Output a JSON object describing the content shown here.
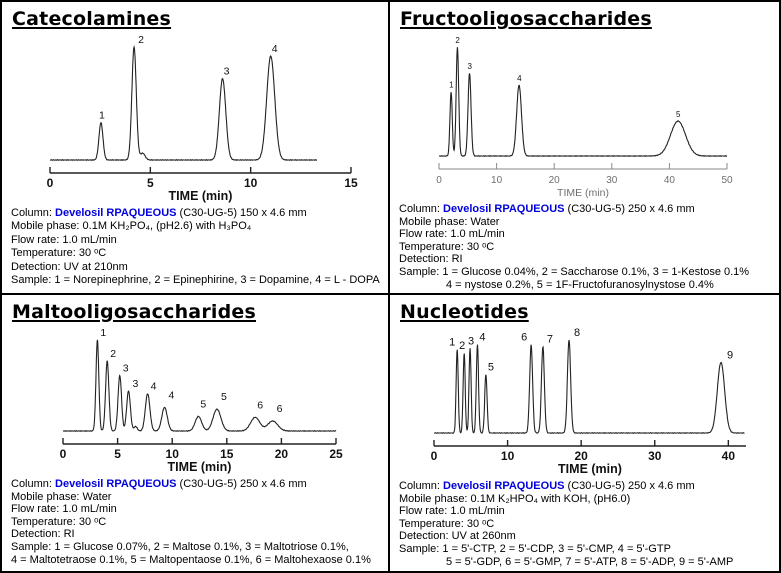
{
  "colors": {
    "accent_blue": "#0000dd",
    "trace": "#222222",
    "axis_dark": "#111111",
    "axis_light": "#6f6f6f"
  },
  "panels": [
    {
      "title": "Catecolamines",
      "details": {
        "column_label": "Column: ",
        "column_name": "Develosil RPAQUEOUS",
        "column_rest": " (C30-UG-5) 150 x 4.6 mm",
        "mobile_phase": "Mobile phase: 0.1M KH₂PO₄, (pH2.6) with H₃PO₄",
        "flow_rate": "Flow rate: 1.0 mL/min",
        "temperature": "Temperature: 30 ᵒC",
        "detection": "Detection: UV at 210nm",
        "sample_line1": "Sample: 1 = Norepinephrine, 2 = Epinephirine, 3 = Dopamine, 4 = L - DOPA",
        "sample_line2": ""
      }
    },
    {
      "title": "Fructooligosaccharides",
      "details": {
        "column_label": "Column: ",
        "column_name": "Develosil RPAQUEOUS",
        "column_rest": " (C30-UG-5) 250 x 4.6 mm",
        "mobile_phase": "Mobile phase: Water",
        "flow_rate": "Flow rate: 1.0 mL/min",
        "temperature": "Temperature: 30 ᵒC",
        "detection": "Detection: RI",
        "sample_line1": "Sample: 1 = Glucose 0.04%, 2 = Saccharose 0.1%, 3 = 1-Kestose 0.1%",
        "sample_line2": "4 =  nystose 0.2%, 5 = 1F-Fructofuranosylnystose 0.4%"
      }
    },
    {
      "title": "Maltooligosaccharides",
      "details": {
        "column_label": "Column: ",
        "column_name": "Develosil RPAQUEOUS",
        "column_rest": " (C30-UG-5) 250 x 4.6 mm",
        "mobile_phase": "Mobile phase: Water",
        "flow_rate": "Flow rate: 1.0 mL/min",
        "temperature": "Temperature: 30 ᵒC",
        "detection": "Detection: RI",
        "sample_line1": "Sample: 1 = Glucose 0.07%, 2 = Maltose 0.1%, 3 = Maltotriose 0.1%,",
        "sample_line2": "4 = Maltotetraose 0.1%, 5 = Maltopentaose 0.1%, 6 = Maltohexaose 0.1%"
      }
    },
    {
      "title": "Nucleotides",
      "details": {
        "column_label": "Column: ",
        "column_name": "Develosil RPAQUEOUS",
        "column_rest": " (C30-UG-5) 250 x 4.6 mm",
        "mobile_phase": "Mobile phase: 0.1M K₂HPO₄ with KOH, (pH6.0)",
        "flow_rate": "Flow rate: 1.0 mL/min",
        "temperature": "Temperature: 30 ᵒC",
        "detection": "Detection: UV at 260nm",
        "sample_line1": "Sample: 1 = 5'-CTP, 2 = 5'-CDP, 3 = 5'-CMP, 4 = 5'-GTP",
        "sample_line2": "5 = 5'-GDP, 6 = 5'-GMP, 7 = 5'-ATP, 8 = 5'-ADP, 9 = 5'-AMP"
      }
    }
  ],
  "chart_data": [
    {
      "type": "line",
      "title": "Catecolamines",
      "xlabel": "TIME (min)",
      "xlim": [
        0,
        15
      ],
      "ticks": [
        0,
        5,
        10,
        15
      ],
      "axis_end": 15,
      "trace_range": [
        0,
        13.3
      ],
      "axis_light": false,
      "label_size": 10.5,
      "y_unit": "relative intensity (no y-axis shown)",
      "peaks": [
        {
          "label": "1",
          "t": 2.54,
          "h": 0.33,
          "w": 0.1,
          "dx": -2
        },
        {
          "label": "2",
          "t": 4.19,
          "h": 1.0,
          "w": 0.11,
          "dx": 4
        },
        {
          "t": 4.62,
          "h": 0.06,
          "w": 0.12
        },
        {
          "label": "3",
          "t": 8.6,
          "h": 0.72,
          "w": 0.16,
          "dx": 1
        },
        {
          "label": "4",
          "t": 11.0,
          "h": 0.92,
          "w": 0.2,
          "dx": 1
        }
      ]
    },
    {
      "type": "line",
      "title": "Fructooligosaccharides",
      "xlabel": "TIME (min)",
      "xlim": [
        0,
        50
      ],
      "ticks": [
        0,
        10,
        20,
        30,
        40,
        50
      ],
      "axis_end": 50,
      "trace_range": [
        0,
        50
      ],
      "axis_light": true,
      "label_size": 8,
      "y_unit": "relative intensity (no y-axis shown)",
      "peaks": [
        {
          "label": "1",
          "t": 2.1,
          "h": 0.59,
          "w": 0.2,
          "dx": -2
        },
        {
          "label": "2",
          "t": 3.2,
          "h": 1.0,
          "w": 0.22,
          "dx": -2
        },
        {
          "label": "3",
          "t": 5.3,
          "h": 0.76,
          "w": 0.26,
          "dx": -2
        },
        {
          "label": "4",
          "t": 13.9,
          "h": 0.65,
          "w": 0.42,
          "dx": -2
        },
        {
          "label": "5",
          "t": 41.5,
          "h": 0.32,
          "w": 1.3,
          "dx": -2
        }
      ]
    },
    {
      "type": "line",
      "title": "Maltooligosaccharides",
      "xlabel": "TIME (min)",
      "xlim": [
        0,
        25
      ],
      "ticks": [
        0,
        5,
        10,
        15,
        20,
        25
      ],
      "axis_end": 25,
      "trace_range": [
        0,
        25
      ],
      "axis_light": false,
      "label_size": 10.5,
      "y_unit": "relative intensity (no y-axis shown)",
      "peaks": [
        {
          "label": "1",
          "t": 3.15,
          "h": 1.0,
          "w": 0.13,
          "dx": 3
        },
        {
          "label": "2",
          "t": 4.05,
          "h": 0.77,
          "w": 0.15,
          "dx": 3
        },
        {
          "label": "3",
          "t": 5.2,
          "h": 0.61,
          "w": 0.16,
          "dx": 3
        },
        {
          "label": "3",
          "t": 6.0,
          "h": 0.44,
          "w": 0.17,
          "dx": 4
        },
        {
          "t": 6.65,
          "h": 0.05,
          "w": 0.15
        },
        {
          "label": "4",
          "t": 7.75,
          "h": 0.41,
          "w": 0.21,
          "dx": 3
        },
        {
          "label": "4",
          "t": 9.3,
          "h": 0.26,
          "w": 0.25,
          "dx": 4
        },
        {
          "label": "5",
          "t": 12.4,
          "h": 0.16,
          "w": 0.3,
          "dx": 2
        },
        {
          "label": "5",
          "t": 14.1,
          "h": 0.24,
          "w": 0.36,
          "dx": 4
        },
        {
          "label": "6",
          "t": 17.6,
          "h": 0.15,
          "w": 0.42,
          "dx": 2
        },
        {
          "label": "6",
          "t": 19.2,
          "h": 0.11,
          "w": 0.46,
          "dx": 4
        }
      ]
    },
    {
      "type": "line",
      "title": "Nucleotides",
      "xlabel": "TIME (min)",
      "xlim": [
        0,
        42.4
      ],
      "ticks": [
        0,
        10,
        20,
        30,
        40
      ],
      "axis_end": 42.4,
      "trace_range": [
        0,
        42.2
      ],
      "axis_light": false,
      "label_size": 11,
      "y_unit": "relative intensity (no y-axis shown)",
      "peaks": [
        {
          "label": "1",
          "t": 3.15,
          "h": 0.9,
          "w": 0.14,
          "dx": -8
        },
        {
          "label": "2",
          "t": 4.1,
          "h": 0.86,
          "w": 0.14,
          "dx": -5
        },
        {
          "label": "3",
          "t": 4.9,
          "h": 0.91,
          "w": 0.14,
          "dx": -2
        },
        {
          "label": "4",
          "t": 5.9,
          "h": 0.95,
          "w": 0.15,
          "dx": 0
        },
        {
          "label": "5",
          "t": 7.05,
          "h": 0.63,
          "w": 0.16,
          "dx": 2
        },
        {
          "label": "6",
          "t": 13.2,
          "h": 0.95,
          "w": 0.2,
          "dx": -10
        },
        {
          "label": "7",
          "t": 14.8,
          "h": 0.93,
          "w": 0.2,
          "dx": 4
        },
        {
          "label": "8",
          "t": 18.35,
          "h": 1.0,
          "w": 0.22,
          "dx": 5
        },
        {
          "label": "9",
          "t": 39.0,
          "h": 0.76,
          "w": 0.5,
          "dx": 6
        }
      ]
    }
  ]
}
